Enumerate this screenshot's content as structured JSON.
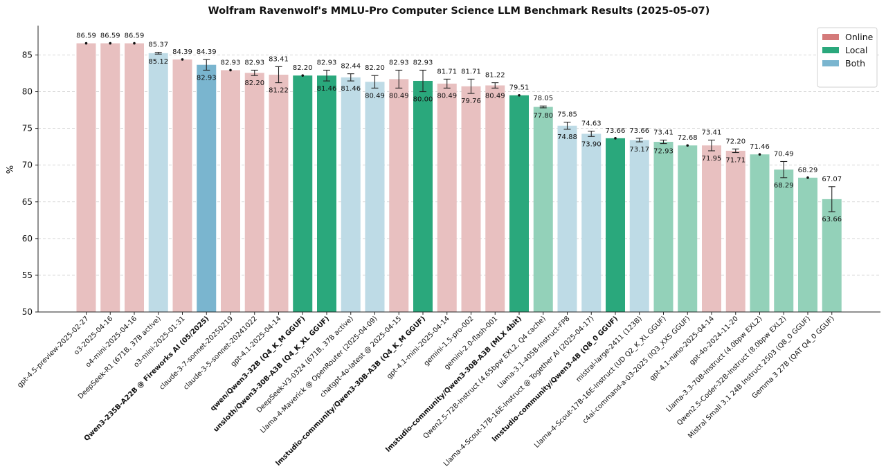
{
  "chart_data": {
    "type": "bar",
    "title": "Wolfram Ravenwolf's MMLU-Pro Computer Science LLM Benchmark Results (2025-05-07)",
    "ylabel": "%",
    "xlabel": "",
    "ylim": [
      50,
      89
    ],
    "yticks": [
      50,
      55,
      60,
      65,
      70,
      75,
      80,
      85
    ],
    "grid": "y-dashed",
    "legend": {
      "placement": "top-right",
      "entries": [
        {
          "name": "Online",
          "color": "#d47a7a"
        },
        {
          "name": "Local",
          "color": "#2aa87c"
        },
        {
          "name": "Both",
          "color": "#7ab5cf"
        }
      ]
    },
    "colors": {
      "Online": {
        "light": "#e8c0c0",
        "dark": "#d47a7a"
      },
      "Local": {
        "light": "#93d1b9",
        "dark": "#2aa87c"
      },
      "Both": {
        "light": "#bedbe6",
        "dark": "#7ab5cf"
      }
    },
    "bars": [
      {
        "label": "gpt-4.5-preview-2025-02-27",
        "group": "Online",
        "highlight": false,
        "top": 86.59,
        "low": 86.59
      },
      {
        "label": "o3-2025-04-16",
        "group": "Online",
        "highlight": false,
        "top": 86.59,
        "low": 86.59
      },
      {
        "label": "o4-mini-2025-04-16",
        "group": "Online",
        "highlight": false,
        "top": 86.59,
        "low": 86.59
      },
      {
        "label": "DeepSeek-R1 (671B, 37B active)",
        "group": "Both",
        "highlight": false,
        "top": 85.37,
        "low": 85.12
      },
      {
        "label": "o3-mini-2025-01-31",
        "group": "Online",
        "highlight": false,
        "top": 84.39,
        "low": 84.39
      },
      {
        "label": "Qwen3-235B-A22B @ Fireworks AI (05/2025)",
        "group": "Both",
        "highlight": true,
        "top": 84.39,
        "low": 82.93
      },
      {
        "label": "claude-3-7-sonnet-20250219",
        "group": "Online",
        "highlight": false,
        "top": 82.93,
        "low": 82.93
      },
      {
        "label": "claude-3-5-sonnet-20241022",
        "group": "Online",
        "highlight": false,
        "top": 82.93,
        "low": 82.2
      },
      {
        "label": "gpt-4.1-2025-04-14",
        "group": "Online",
        "highlight": false,
        "top": 83.41,
        "low": 81.22
      },
      {
        "label": "qwen/Qwen3-32B (Q4_K_M GGUF)",
        "group": "Local",
        "highlight": true,
        "top": 82.2,
        "low": 82.2
      },
      {
        "label": "unsloth/Qwen3-30B-A3B (Q4_K_XL GGUF)",
        "group": "Local",
        "highlight": true,
        "top": 82.93,
        "low": 81.46
      },
      {
        "label": "DeepSeek-V3-0324 (671B, 37B active)",
        "group": "Both",
        "highlight": false,
        "top": 82.44,
        "low": 81.46
      },
      {
        "label": "Llama-4-Maverick @ OpenRouter (2025-04-09)",
        "group": "Both",
        "highlight": false,
        "top": 82.2,
        "low": 80.49
      },
      {
        "label": "chatgpt-4o-latest @ 2025-04-15",
        "group": "Online",
        "highlight": false,
        "top": 82.93,
        "low": 80.49
      },
      {
        "label": "lmstudio-community/Qwen3-30B-A3B (Q4_K_M GGUF)",
        "group": "Local",
        "highlight": true,
        "top": 82.93,
        "low": 80.0
      },
      {
        "label": "gpt-4.1-mini-2025-04-14",
        "group": "Online",
        "highlight": false,
        "top": 81.71,
        "low": 80.49
      },
      {
        "label": "gemini-1.5-pro-002",
        "group": "Online",
        "highlight": false,
        "top": 81.71,
        "low": 79.76
      },
      {
        "label": "gemini-2.0-flash-001",
        "group": "Online",
        "highlight": false,
        "top": 81.22,
        "low": 80.49
      },
      {
        "label": "lmstudio-community/Qwen3-30B-A3B (MLX 4bit)",
        "group": "Local",
        "highlight": true,
        "top": 79.51,
        "low": 79.51
      },
      {
        "label": "Qwen2.5-72B-Instruct (4.65bpw EXL2, Q4 cache)",
        "group": "Local",
        "highlight": false,
        "top": 78.05,
        "low": 77.8
      },
      {
        "label": "Llama-3.1-405B-Instruct-FP8",
        "group": "Both",
        "highlight": false,
        "top": 75.85,
        "low": 74.88
      },
      {
        "label": "Llama-4-Scout-17B-16E-Instruct @ Together AI (2025-04-17)",
        "group": "Both",
        "highlight": false,
        "top": 74.63,
        "low": 73.9
      },
      {
        "label": "lmstudio-community/Qwen3-4B (Q8_0 GGUF)",
        "group": "Local",
        "highlight": true,
        "top": 73.66,
        "low": 73.66
      },
      {
        "label": "mistral-large-2411 (123B)",
        "group": "Both",
        "highlight": false,
        "top": 73.66,
        "low": 73.17
      },
      {
        "label": "Llama-4-Scout-17B-16E-Instruct (UD Q2_K_XL GGUF)",
        "group": "Local",
        "highlight": false,
        "top": 73.41,
        "low": 72.93
      },
      {
        "label": "c4ai-command-a-03-2025 (IQ3_XXS GGUF)",
        "group": "Local",
        "highlight": false,
        "top": 72.68,
        "low": 72.68
      },
      {
        "label": "gpt-4.1-nano-2025-04-14",
        "group": "Online",
        "highlight": false,
        "top": 73.41,
        "low": 71.95
      },
      {
        "label": "gpt-4o-2024-11-20",
        "group": "Online",
        "highlight": false,
        "top": 72.2,
        "low": 71.71
      },
      {
        "label": "Llama-3.3-70B-Instruct (4.0bpw EXL2)",
        "group": "Local",
        "highlight": false,
        "top": 71.46,
        "low": 71.46
      },
      {
        "label": "Qwen2.5-Coder-32B-Instruct (8.0bpw EXL2)",
        "group": "Local",
        "highlight": false,
        "top": 70.49,
        "low": 68.29
      },
      {
        "label": "Mistral Small 3.1 24B Instruct 2503 (Q8_0 GGUF)",
        "group": "Local",
        "highlight": false,
        "top": 68.29,
        "low": 68.29
      },
      {
        "label": "Gemma 3 27B (QAT Q4_0 GGUF)",
        "group": "Local",
        "highlight": false,
        "top": 67.07,
        "low": 63.66
      }
    ]
  }
}
